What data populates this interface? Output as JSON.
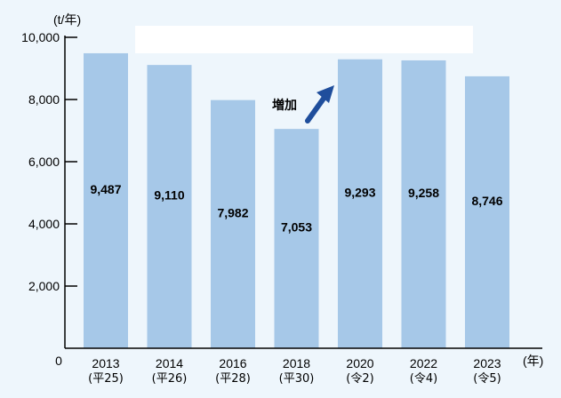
{
  "chart_data": {
    "type": "bar",
    "unit_label": "(t/年)",
    "x_unit_label": "(年)",
    "ylim": [
      0,
      10000
    ],
    "yticks": [
      0,
      2000,
      4000,
      6000,
      8000,
      10000
    ],
    "ytick_labels": [
      "0",
      "2,000",
      "4,000",
      "6,000",
      "8,000",
      "10,000"
    ],
    "categories": [
      "2013",
      "2014",
      "2016",
      "2018",
      "2020",
      "2022",
      "2023"
    ],
    "era_labels": [
      "(平25)",
      "(平26)",
      "(平28)",
      "(平30)",
      "(令2)",
      "(令4)",
      "(令5)"
    ],
    "values": [
      9487,
      9110,
      7982,
      7053,
      9293,
      9258,
      8746
    ],
    "value_labels": [
      "9,487",
      "9,110",
      "7,982",
      "7,053",
      "9,293",
      "9,258",
      "8,746"
    ],
    "annotation": "増加",
    "grid": false,
    "legend": "none",
    "colors": {
      "bar": "#a6c8e8",
      "background": "#eef6fc",
      "arrow": "#1f4e9c",
      "axis": "#000000",
      "text": "#000000"
    }
  }
}
